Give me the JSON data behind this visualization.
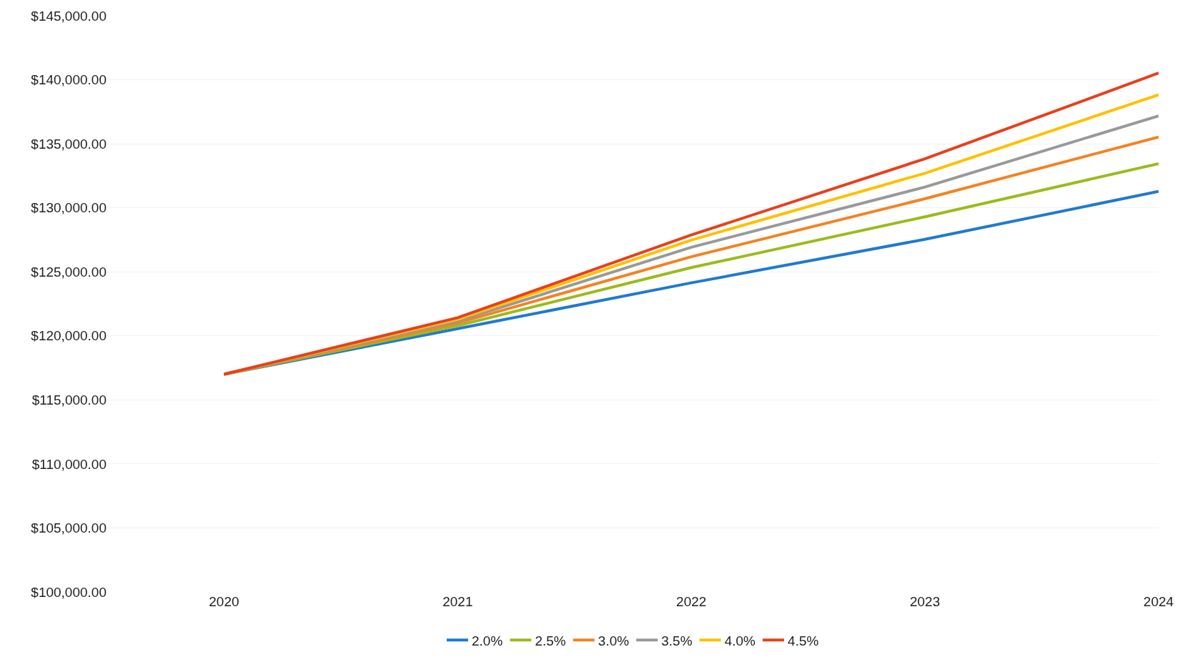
{
  "chart_data": {
    "type": "line",
    "categories": [
      "2020",
      "2021",
      "2022",
      "2023",
      "2024"
    ],
    "series": [
      {
        "name": "2.0%",
        "color": "#1f7ad0",
        "values": [
          117000,
          120560,
          124140,
          127540,
          131280
        ]
      },
      {
        "name": "2.5%",
        "color": "#9bbb1c",
        "values": [
          117000,
          120800,
          125330,
          129300,
          133440
        ]
      },
      {
        "name": "3.0%",
        "color": "#f58220",
        "values": [
          117000,
          121000,
          126180,
          130710,
          135530
        ]
      },
      {
        "name": "3.5%",
        "color": "#999999",
        "values": [
          117000,
          121150,
          126920,
          131620,
          137180
        ]
      },
      {
        "name": "4.0%",
        "color": "#ffc000",
        "values": [
          117000,
          121300,
          127480,
          132700,
          138820
        ]
      },
      {
        "name": "4.5%",
        "color": "#e8401c",
        "values": [
          117000,
          121420,
          127880,
          133830,
          140520
        ]
      }
    ],
    "ylim": [
      100000,
      145000
    ],
    "yticks": [
      {
        "value": 100000,
        "label": "$100,000.00"
      },
      {
        "value": 105000,
        "label": "$105,000.00"
      },
      {
        "value": 110000,
        "label": "$110,000.00"
      },
      {
        "value": 115000,
        "label": "$115,000.00"
      },
      {
        "value": 120000,
        "label": "$120,000.00"
      },
      {
        "value": 125000,
        "label": "$125,000.00"
      },
      {
        "value": 130000,
        "label": "$130,000.00"
      },
      {
        "value": 135000,
        "label": "$135,000.00"
      },
      {
        "value": 140000,
        "label": "$140,000.00"
      },
      {
        "value": 145000,
        "label": "$145,000.00"
      }
    ],
    "grid": "y",
    "legend": "bottom",
    "marker": "none",
    "line_style": "solid"
  }
}
